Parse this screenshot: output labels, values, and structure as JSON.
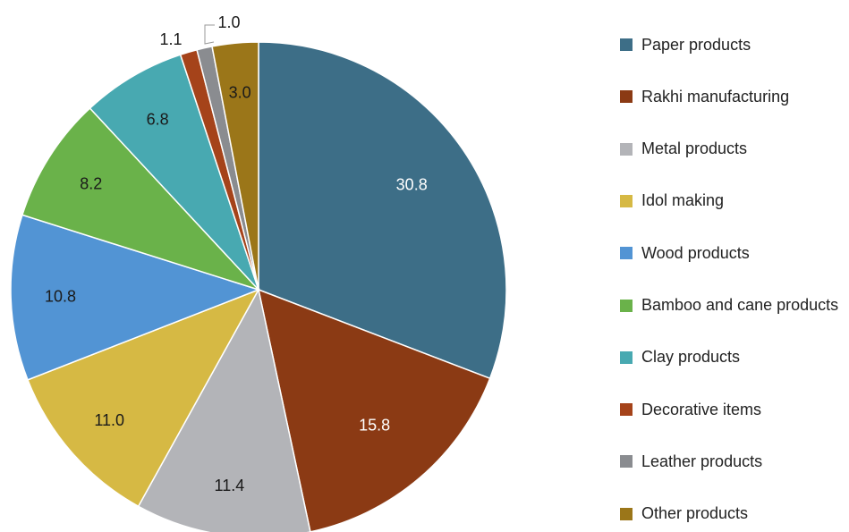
{
  "chart_data": {
    "type": "pie",
    "title": "",
    "slices": [
      {
        "label": "Paper products",
        "value": 30.8,
        "color": "#3D6E87",
        "value_label": "30.8",
        "label_color": "#ffffff"
      },
      {
        "label": "Rakhi manufacturing",
        "value": 15.8,
        "color": "#8B3A14",
        "value_label": "15.8",
        "label_color": "#ffffff"
      },
      {
        "label": "Metal products",
        "value": 11.4,
        "color": "#B3B4B8",
        "value_label": "11.4",
        "label_color": "#1a1a1a"
      },
      {
        "label": "Idol making",
        "value": 11.0,
        "color": "#D6B944",
        "value_label": "11.0",
        "label_color": "#1a1a1a"
      },
      {
        "label": "Wood products",
        "value": 10.8,
        "color": "#5294D4",
        "value_label": "10.8",
        "label_color": "#1a1a1a"
      },
      {
        "label": "Bamboo and cane products",
        "value": 8.2,
        "color": "#6AB24A",
        "value_label": "8.2",
        "label_color": "#1a1a1a"
      },
      {
        "label": "Clay products",
        "value": 6.8,
        "color": "#48A9B1",
        "value_label": "6.8",
        "label_color": "#1a1a1a"
      },
      {
        "label": "Decorative items",
        "value": 1.1,
        "color": "#A5431A",
        "value_label": "1.1",
        "label_color": "#1a1a1a"
      },
      {
        "label": "Leather products",
        "value": 1.0,
        "color": "#8A8C90",
        "value_label": "1.0",
        "label_color": "#1a1a1a"
      },
      {
        "label": "Other products",
        "value": 3.0,
        "color": "#9B7619",
        "value_label": "3.0",
        "label_color": "#1a1a1a"
      }
    ],
    "legend_position": "right"
  }
}
